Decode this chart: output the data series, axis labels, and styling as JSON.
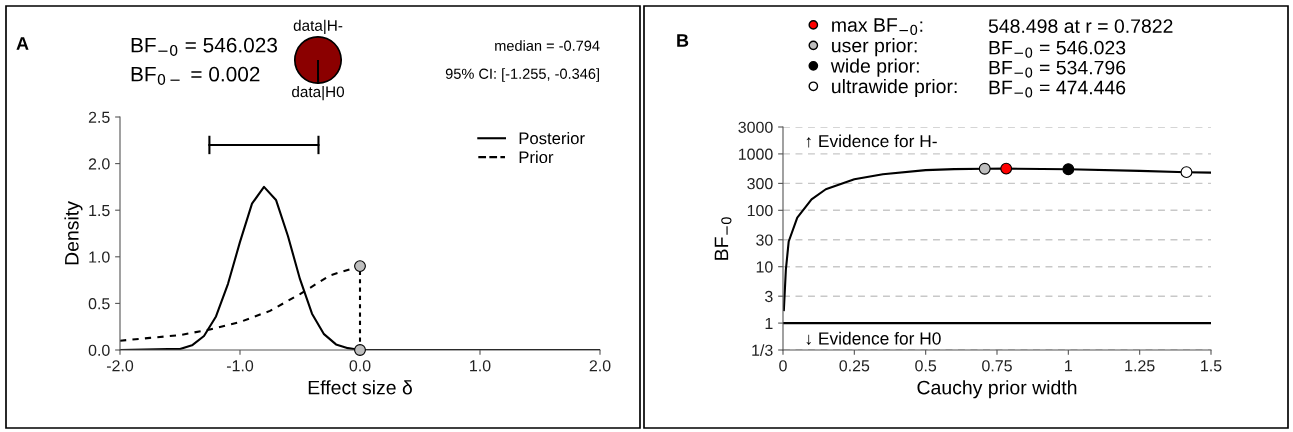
{
  "chart_data": [
    {
      "type": "line",
      "xlabel": "Effect size δ",
      "ylabel": "Density",
      "xlim": [
        -2,
        2
      ],
      "ylim": [
        0,
        2.5
      ],
      "xticks": [
        {
          "value": -2,
          "label": "-2.0"
        },
        {
          "value": -1,
          "label": "-1.0"
        },
        {
          "value": 0,
          "label": "0.0"
        },
        {
          "value": 1,
          "label": "1.0"
        },
        {
          "value": 2,
          "label": "2.0"
        }
      ],
      "yticks": [
        {
          "value": 0,
          "label": "0.0"
        },
        {
          "value": 0.5,
          "label": "0.5"
        },
        {
          "value": 1,
          "label": "1.0"
        },
        {
          "value": 1.5,
          "label": "1.5"
        },
        {
          "value": 2,
          "label": "2.0"
        },
        {
          "value": 2.5,
          "label": "2.5"
        }
      ],
      "legend": "top right",
      "series": [
        {
          "name": "Posterior",
          "type": "line",
          "line_style": "solid",
          "color": "#000000",
          "x": [
            -2,
            -1.6,
            -1.5,
            -1.4,
            -1.3,
            -1.2,
            -1.1,
            -1.0,
            -0.9,
            -0.8,
            -0.7,
            -0.6,
            -0.5,
            -0.4,
            -0.3,
            -0.2,
            -0.1,
            0,
            2
          ],
          "values": [
            0,
            0.01,
            0.01,
            0.05,
            0.15,
            0.36,
            0.71,
            1.16,
            1.57,
            1.75,
            1.61,
            1.22,
            0.76,
            0.39,
            0.17,
            0.06,
            0.02,
            0,
            0
          ]
        },
        {
          "name": "Prior",
          "type": "line",
          "line_style": "dashed",
          "color": "#000000",
          "x": [
            -2,
            -1.75,
            -1.5,
            -1.25,
            -1.0,
            -0.75,
            -0.5,
            -0.25,
            0
          ],
          "values": [
            0.1,
            0.13,
            0.16,
            0.22,
            0.3,
            0.42,
            0.6,
            0.8,
            0.9
          ]
        },
        {
          "type": "line",
          "line_style": "dotted",
          "color": "#000000",
          "x": [
            0,
            0
          ],
          "values": [
            0,
            0.9
          ]
        },
        {
          "type": "scatter",
          "marker": "circle",
          "color": "#bebebe",
          "x": [
            0,
            0
          ],
          "values": [
            0.9,
            0
          ]
        },
        {
          "type": "line",
          "line_style": "solid",
          "color": "#000000",
          "x": [
            -1.255,
            -0.346
          ],
          "values": [
            2.2,
            2.2
          ]
        }
      ],
      "annotations": [
        "A",
        "BF$_{−0}$ = 546.023",
        "BF$_{0−}$ = 0.002",
        "median = -0.794",
        "95% CI: [-1.255, -0.346]"
      ]
    },
    {
      "type": "pie",
      "categories": [
        "data|H-",
        "data|H0"
      ],
      "values": [
        99.82,
        0.18
      ],
      "colors": [
        "#8b0000",
        "#ffffff"
      ]
    },
    {
      "type": "line",
      "xlabel": "Cauchy prior width",
      "ylabel": "BF$_{−0}$",
      "log": "y",
      "xlim": [
        0,
        1.5
      ],
      "ylim": [
        0.3333,
        3000
      ],
      "xticks": [
        0,
        0.25,
        0.5,
        0.75,
        1,
        1.25,
        1.5
      ],
      "yticks": [
        {
          "value": 0.3333,
          "label": "1/3"
        },
        1,
        3,
        10,
        30,
        100,
        300,
        1000,
        3000
      ],
      "grid": "y",
      "legend": "top",
      "ref_lines": [
        {
          "axis": "y",
          "value": 1,
          "color": "#000000",
          "line_style": "solid"
        }
      ],
      "series": [
        {
          "type": "line",
          "line_style": "solid",
          "color": "#000000",
          "x": [
            0.003,
            0.01,
            0.02,
            0.05,
            0.1,
            0.15,
            0.25,
            0.35,
            0.5,
            0.6,
            0.707,
            0.7822,
            1.0,
            1.25,
            1.414,
            1.5
          ],
          "values": [
            1.7,
            8.8,
            28,
            74,
            156,
            236,
            355,
            437,
            515,
            537,
            546,
            548,
            535,
            500,
            474,
            465
          ]
        },
        {
          "name": "max BF$_{−0}$:",
          "type": "scatter",
          "marker": "circle",
          "color": "#ff0000",
          "x": [
            0.7822
          ],
          "values": [
            548.498
          ]
        },
        {
          "name": "user prior:",
          "type": "scatter",
          "marker": "circle",
          "color": "#bebebe",
          "x": [
            0.707
          ],
          "values": [
            546.023
          ]
        },
        {
          "name": "wide prior:",
          "type": "scatter",
          "marker": "circle",
          "color": "#000000",
          "x": [
            1.0
          ],
          "values": [
            534.796
          ]
        },
        {
          "name": "ultrawide prior:",
          "type": "scatter",
          "marker": "circle",
          "color": "#ffffff",
          "x": [
            1.414
          ],
          "values": [
            474.446
          ]
        }
      ],
      "annotations": [
        "B",
        "↑ Evidence for H-",
        "↓ Evidence for H0",
        "548.498 at r = 0.7822",
        "BF$_{−0}$ = 546.023",
        "BF$_{−0}$ = 534.796",
        "BF$_{−0}$ = 474.446"
      ]
    }
  ]
}
